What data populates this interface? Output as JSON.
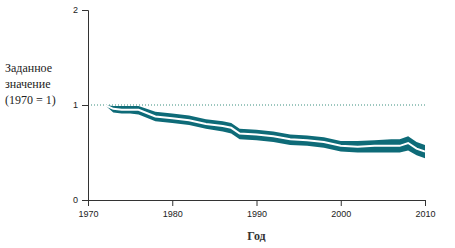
{
  "chart_data": {
    "type": "line",
    "xlabel": "Год",
    "ylabel": [
      "Заданное",
      "значение",
      "(1970 = 1)"
    ],
    "x": [
      1972,
      1973,
      1974,
      1975,
      1976,
      1978,
      1980,
      1982,
      1984,
      1986,
      1987,
      1988,
      1990,
      1992,
      1994,
      1996,
      1998,
      2000,
      2002,
      2004,
      2006,
      2007,
      2008,
      2009,
      2010
    ],
    "series": [
      {
        "color": "#0e6b78",
        "values": [
          1.0,
          0.96,
          0.95,
          0.95,
          0.95,
          0.88,
          0.86,
          0.84,
          0.8,
          0.78,
          0.76,
          0.7,
          0.69,
          0.67,
          0.64,
          0.63,
          0.61,
          0.57,
          0.56,
          0.57,
          0.57,
          0.57,
          0.6,
          0.54,
          0.51
        ],
        "upper": [
          1.0,
          0.99,
          0.99,
          0.99,
          0.99,
          0.93,
          0.91,
          0.89,
          0.85,
          0.83,
          0.81,
          0.75,
          0.74,
          0.72,
          0.69,
          0.68,
          0.66,
          0.62,
          0.62,
          0.63,
          0.64,
          0.64,
          0.67,
          0.61,
          0.58
        ],
        "lower": [
          1.0,
          0.92,
          0.91,
          0.91,
          0.9,
          0.83,
          0.81,
          0.79,
          0.75,
          0.72,
          0.7,
          0.64,
          0.63,
          0.61,
          0.58,
          0.57,
          0.55,
          0.51,
          0.5,
          0.5,
          0.5,
          0.5,
          0.52,
          0.47,
          0.44
        ]
      }
    ],
    "reference_line": 1,
    "xlim": [
      1970,
      2010
    ],
    "xticks": [
      1970,
      1980,
      1990,
      2000,
      2010
    ],
    "ylim": [
      0,
      2
    ],
    "yticks": [
      0,
      1,
      2
    ],
    "grid": false
  }
}
